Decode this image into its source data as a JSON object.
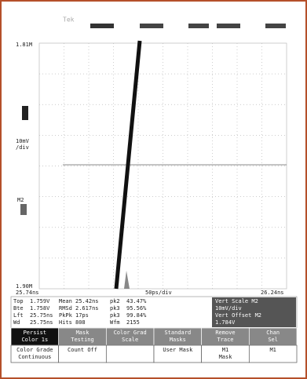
{
  "header": {
    "brand": "Tek"
  },
  "scale": {
    "top": "1.81M",
    "volts_per_div": "10mV",
    "per_div": "/div",
    "marker": "M2",
    "bottom": "1.90M",
    "left_time": "25.74ns",
    "time_per_div": "50ps/div",
    "right_time": "26.24ns"
  },
  "readout": {
    "rows": [
      [
        "Top",
        "1.759V",
        "Mean",
        "25.42ns",
        "pk2",
        "43.47%"
      ],
      [
        "Bte",
        "1.758V",
        "RMSd",
        "2.617ns",
        "pk3",
        "95.56%"
      ],
      [
        "Lft",
        "25.75ns",
        "PkPk",
        "17ps",
        "pk3",
        "99.84%"
      ],
      [
        "Wd",
        "25.75ns",
        "Hits",
        "808",
        "Wfm",
        "2155"
      ]
    ],
    "side": [
      "Vert Scale M2",
      "10mV/div",
      "Vert Offset M2",
      "1.784V"
    ]
  },
  "buttons": [
    [
      "Persist",
      "Color 1s"
    ],
    [
      "Mask",
      "Testing"
    ],
    [
      "Color Grad",
      "Scale"
    ],
    [
      "Standard",
      "Masks"
    ],
    [
      "Remove",
      "Trace"
    ],
    [
      "Chan",
      "Sel"
    ]
  ],
  "sub_buttons": [
    [
      "Color Grade",
      "Continuous"
    ],
    [
      "Count Off",
      ""
    ],
    [
      "",
      ""
    ],
    [
      "User Mask",
      ""
    ],
    [
      "M1",
      "Mask"
    ],
    [
      "M1",
      ""
    ]
  ]
}
